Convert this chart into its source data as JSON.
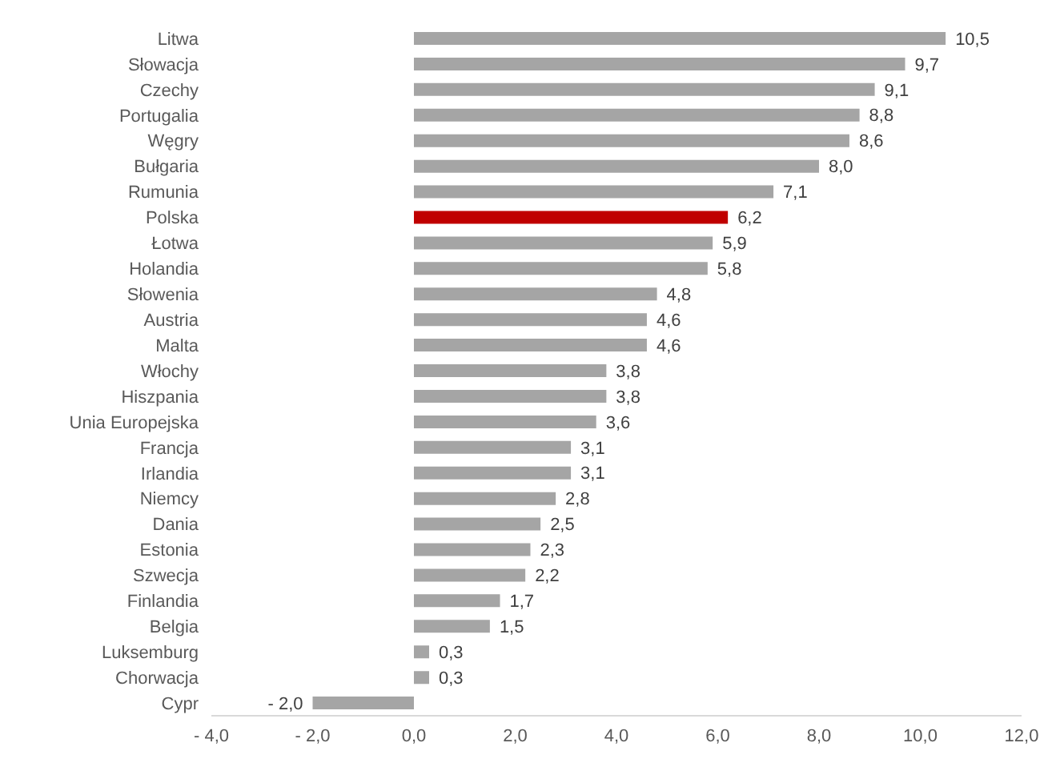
{
  "chart_data": {
    "type": "bar",
    "orientation": "horizontal",
    "categories": [
      "Litwa",
      "Słowacja",
      "Czechy",
      "Portugalia",
      "Węgry",
      "Bułgaria",
      "Rumunia",
      "Polska",
      "Łotwa",
      "Holandia",
      "Słowenia",
      "Austria",
      "Malta",
      "Włochy",
      "Hiszpania",
      "Unia Europejska",
      "Francja",
      "Irlandia",
      "Niemcy",
      "Dania",
      "Estonia",
      "Szwecja",
      "Finlandia",
      "Belgia",
      "Luksemburg",
      "Chorwacja",
      "Cypr"
    ],
    "values": [
      10.5,
      9.7,
      9.1,
      8.8,
      8.6,
      8.0,
      7.1,
      6.2,
      5.9,
      5.8,
      4.8,
      4.6,
      4.6,
      3.8,
      3.8,
      3.6,
      3.1,
      3.1,
      2.8,
      2.5,
      2.3,
      2.2,
      1.7,
      1.5,
      0.3,
      0.3,
      -2.0
    ],
    "value_labels": [
      "10,5",
      "9,7",
      "9,1",
      "8,8",
      "8,6",
      "8,0",
      "7,1",
      "6,2",
      "5,9",
      "5,8",
      "4,8",
      "4,6",
      "4,6",
      "3,8",
      "3,8",
      "3,6",
      "3,1",
      "3,1",
      "2,8",
      "2,5",
      "2,3",
      "2,2",
      "1,7",
      "1,5",
      "0,3",
      "0,3",
      "- 2,0"
    ],
    "colors": [
      "#a5a5a5",
      "#a5a5a5",
      "#a5a5a5",
      "#a5a5a5",
      "#a5a5a5",
      "#a5a5a5",
      "#a5a5a5",
      "#c00000",
      "#a5a5a5",
      "#a5a5a5",
      "#a5a5a5",
      "#a5a5a5",
      "#a5a5a5",
      "#a5a5a5",
      "#a5a5a5",
      "#a5a5a5",
      "#a5a5a5",
      "#a5a5a5",
      "#a5a5a5",
      "#a5a5a5",
      "#a5a5a5",
      "#a5a5a5",
      "#a5a5a5",
      "#a5a5a5",
      "#a5a5a5",
      "#a5a5a5",
      "#a5a5a5"
    ],
    "xlim": [
      -4,
      12
    ],
    "xticks": [
      {
        "value": -4,
        "label": "- 4,0"
      },
      {
        "value": -2,
        "label": "- 2,0"
      },
      {
        "value": 0,
        "label": "0,0"
      },
      {
        "value": 2,
        "label": "2,0"
      },
      {
        "value": 4,
        "label": "4,0"
      },
      {
        "value": 6,
        "label": "6,0"
      },
      {
        "value": 8,
        "label": "8,0"
      },
      {
        "value": 10,
        "label": "10,0"
      },
      {
        "value": 12,
        "label": "12,0"
      }
    ],
    "grid": false,
    "legend": false
  }
}
